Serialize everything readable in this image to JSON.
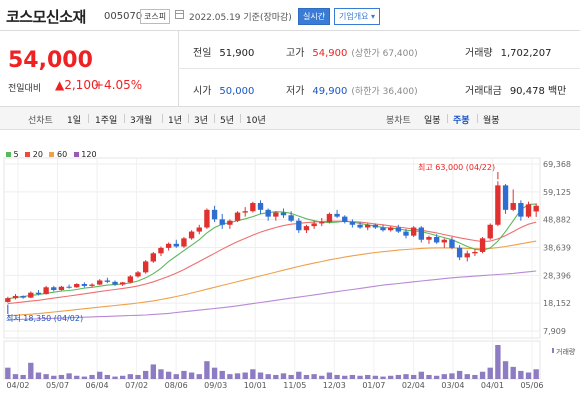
{
  "header": {
    "name": "코스모신소재",
    "code": "005070",
    "market": "코스피",
    "date": "2022.05.19 기준(장마감)",
    "realtime_label": "실시간",
    "company_label": "기업개요"
  },
  "summary": {
    "price": "54,000",
    "change_label": "전일대비",
    "change_value": "▲2,100",
    "change_pct": "+4.05%",
    "prev_close": {
      "label": "전일",
      "value": "51,900"
    },
    "high": {
      "label": "고가",
      "value": "54,900",
      "note": "(상한가 67,400)"
    },
    "volume": {
      "label": "거래량",
      "value": "1,702,207"
    },
    "open": {
      "label": "시가",
      "value": "50,000"
    },
    "low": {
      "label": "저가",
      "value": "49,900",
      "note": "(하한가 36,400)"
    },
    "amount": {
      "label": "거래대금",
      "value": "90,478 백만"
    }
  },
  "toolbar": {
    "line_chart": "선차트",
    "periods": [
      "1일",
      "1주일",
      "3개월",
      "1년",
      "3년",
      "5년",
      "10년"
    ],
    "candle_chart": "봉차트",
    "candle_periods": [
      "일봉",
      "주봉",
      "월봉"
    ],
    "active_candle": "주봉"
  },
  "chart_data": {
    "type": "candlestick",
    "legend": [
      {
        "label": "5",
        "color": "#5cb85c"
      },
      {
        "label": "20",
        "color": "#e74c3c"
      },
      {
        "label": "60",
        "color": "#f0a04b"
      },
      {
        "label": "120",
        "color": "#9b59b6"
      }
    ],
    "y_ticks": [
      "69,368",
      "59,125",
      "48,882",
      "38,639",
      "28,396",
      "18,152",
      "7,909"
    ],
    "x_ticks": [
      "04/02",
      "05/07",
      "06/04",
      "07/02",
      "08/06",
      "09/03",
      "10/01",
      "11/05",
      "12/03",
      "01/07",
      "02/04",
      "03/04",
      "04/01",
      "05/06"
    ],
    "ylim": [
      7909,
      69368
    ],
    "high_annotation": "최고 63,000 (04/22)",
    "low_annotation": "최저 18,350 (04/02)",
    "volume_label": "거래량",
    "candles": [
      [
        18600,
        20500,
        18350,
        20000
      ],
      [
        20000,
        21500,
        19500,
        20800
      ],
      [
        20800,
        21000,
        19800,
        20200
      ],
      [
        20200,
        22500,
        20000,
        22000
      ],
      [
        22000,
        23000,
        21000,
        21500
      ],
      [
        21500,
        24500,
        21300,
        24000
      ],
      [
        24000,
        24500,
        22500,
        23000
      ],
      [
        23000,
        24500,
        22800,
        24200
      ],
      [
        24200,
        25000,
        23500,
        24000
      ],
      [
        24000,
        25500,
        23800,
        25200
      ],
      [
        25200,
        25800,
        24000,
        24500
      ],
      [
        24500,
        25500,
        24000,
        25000
      ],
      [
        25000,
        27000,
        24800,
        26500
      ],
      [
        26500,
        27500,
        25500,
        26000
      ],
      [
        26000,
        26500,
        24500,
        25000
      ],
      [
        25000,
        26000,
        24500,
        25800
      ],
      [
        25800,
        28500,
        25500,
        28000
      ],
      [
        28000,
        30000,
        27500,
        29500
      ],
      [
        29500,
        34000,
        29000,
        33500
      ],
      [
        33500,
        37000,
        33000,
        36500
      ],
      [
        36500,
        39000,
        35500,
        38500
      ],
      [
        38500,
        40500,
        37500,
        40000
      ],
      [
        40000,
        41500,
        38500,
        39000
      ],
      [
        39000,
        42500,
        38500,
        42000
      ],
      [
        42000,
        45000,
        41500,
        44500
      ],
      [
        44500,
        47000,
        43500,
        46000
      ],
      [
        46000,
        53000,
        45500,
        52500
      ],
      [
        52500,
        54000,
        48000,
        49000
      ],
      [
        49000,
        51000,
        45500,
        47000
      ],
      [
        47000,
        49000,
        45500,
        48500
      ],
      [
        48500,
        52000,
        48000,
        51500
      ],
      [
        51500,
        53500,
        50000,
        52000
      ],
      [
        52000,
        55500,
        51500,
        55000
      ],
      [
        55000,
        56000,
        51000,
        52500
      ],
      [
        52500,
        53000,
        48500,
        50000
      ],
      [
        50000,
        52000,
        48500,
        51500
      ],
      [
        51500,
        53000,
        49500,
        50500
      ],
      [
        50500,
        52000,
        48000,
        48500
      ],
      [
        48500,
        49500,
        44000,
        45000
      ],
      [
        45000,
        47000,
        44000,
        46500
      ],
      [
        46500,
        48500,
        45500,
        47500
      ],
      [
        47500,
        49500,
        46500,
        48000
      ],
      [
        48000,
        51500,
        47500,
        51000
      ],
      [
        51000,
        52500,
        49500,
        50000
      ],
      [
        50000,
        50500,
        47500,
        48000
      ],
      [
        48000,
        49000,
        46000,
        47000
      ],
      [
        47000,
        48000,
        45500,
        46000
      ],
      [
        46000,
        47500,
        45000,
        47000
      ],
      [
        47000,
        47500,
        45500,
        46000
      ],
      [
        46000,
        47000,
        44500,
        45000
      ],
      [
        45000,
        46500,
        44500,
        46000
      ],
      [
        46000,
        47000,
        44000,
        44500
      ],
      [
        44500,
        45500,
        42000,
        43000
      ],
      [
        43000,
        46500,
        42500,
        46000
      ],
      [
        46000,
        46500,
        40500,
        41500
      ],
      [
        41500,
        43000,
        40000,
        42500
      ],
      [
        42500,
        43500,
        40000,
        40500
      ],
      [
        40500,
        42000,
        38500,
        41500
      ],
      [
        41500,
        42500,
        38000,
        38500
      ],
      [
        38500,
        39500,
        34000,
        35000
      ],
      [
        35000,
        37500,
        33500,
        36500
      ],
      [
        36500,
        38000,
        35500,
        37000
      ],
      [
        37000,
        42500,
        36500,
        42000
      ],
      [
        42000,
        47500,
        41500,
        47000
      ],
      [
        47000,
        63000,
        46500,
        61500
      ],
      [
        61500,
        62000,
        51000,
        52500
      ],
      [
        52500,
        60000,
        52000,
        55000
      ],
      [
        55000,
        56000,
        48500,
        50000
      ],
      [
        50000,
        55500,
        49500,
        54500
      ],
      [
        51900,
        54900,
        49900,
        54000
      ]
    ],
    "ma5": [
      19800,
      20200,
      20600,
      21000,
      21300,
      21800,
      22200,
      22600,
      22800,
      23200,
      23700,
      24000,
      24400,
      24800,
      25000,
      25200,
      25600,
      26300,
      27500,
      29000,
      31000,
      33500,
      35500,
      37500,
      39500,
      41500,
      44000,
      46000,
      47200,
      47800,
      48500,
      49200,
      50000,
      51000,
      51500,
      51800,
      51700,
      51200,
      50200,
      49200,
      48500,
      48000,
      47800,
      48000,
      48300,
      48000,
      47500,
      47000,
      46500,
      46000,
      45800,
      45500,
      45000,
      44800,
      44500,
      43800,
      43000,
      42300,
      41500,
      40300,
      39000,
      38000,
      37600,
      38500,
      41000,
      44500,
      48500,
      52500,
      54500,
      54600
    ],
    "ma20": [
      18000,
      18300,
      18600,
      18900,
      19200,
      19600,
      20000,
      20400,
      20800,
      21200,
      21600,
      22000,
      22400,
      22800,
      23200,
      23600,
      24000,
      24500,
      25200,
      26000,
      27000,
      28000,
      29200,
      30500,
      32000,
      33500,
      35000,
      36500,
      38000,
      39500,
      40800,
      42000,
      43200,
      44300,
      45200,
      46000,
      46700,
      47200,
      47500,
      47800,
      48000,
      48200,
      48300,
      48300,
      48300,
      48200,
      48000,
      47700,
      47300,
      47000,
      46600,
      46200,
      45800,
      45400,
      45000,
      44500,
      44000,
      43400,
      42800,
      42200,
      41700,
      41200,
      40800,
      41000,
      41800,
      43000,
      44500,
      46000,
      47200,
      48000
    ],
    "ma60": [
      13500,
      13700,
      13900,
      14100,
      14300,
      14600,
      14900,
      15200,
      15500,
      15800,
      16100,
      16400,
      16700,
      17000,
      17300,
      17600,
      17900,
      18200,
      18600,
      19000,
      19500,
      20000,
      20600,
      21200,
      21900,
      22600,
      23300,
      24000,
      24700,
      25400,
      26100,
      26800,
      27500,
      28200,
      28900,
      29600,
      30300,
      31000,
      31700,
      32300,
      32900,
      33500,
      34100,
      34600,
      35100,
      35600,
      36000,
      36400,
      36800,
      37100,
      37400,
      37700,
      37900,
      38100,
      38300,
      38400,
      38500,
      38500,
      38500,
      38400,
      38300,
      38200,
      38200,
      38300,
      38600,
      39000,
      39500,
      40000,
      40500,
      41000
    ],
    "ma120": [
      12000,
      12100,
      12200,
      12300,
      12400,
      12500,
      12600,
      12700,
      12800,
      12900,
      13000,
      13100,
      13200,
      13300,
      13400,
      13500,
      13600,
      13700,
      13800,
      14000,
      14200,
      14400,
      14700,
      15000,
      15300,
      15600,
      15900,
      16200,
      16500,
      16800,
      17200,
      17600,
      18000,
      18400,
      18800,
      19200,
      19600,
      20000,
      20400,
      20800,
      21200,
      21600,
      22000,
      22400,
      22800,
      23200,
      23600,
      24000,
      24400,
      24800,
      25100,
      25400,
      25700,
      26000,
      26300,
      26600,
      26900,
      27200,
      27500,
      27700,
      27900,
      28100,
      28300,
      28500,
      28700,
      28900,
      29100,
      29400,
      29700,
      30000
    ],
    "volumes": [
      14,
      6,
      5,
      20,
      8,
      6,
      4,
      5,
      7,
      4,
      3,
      5,
      9,
      5,
      3,
      4,
      6,
      5,
      10,
      18,
      12,
      9,
      6,
      10,
      8,
      6,
      22,
      14,
      10,
      6,
      7,
      8,
      12,
      8,
      6,
      5,
      7,
      5,
      9,
      5,
      6,
      4,
      8,
      5,
      4,
      5,
      4,
      5,
      4,
      3,
      4,
      5,
      6,
      5,
      9,
      5,
      4,
      6,
      7,
      10,
      6,
      5,
      9,
      14,
      42,
      22,
      15,
      10,
      8,
      12
    ]
  }
}
